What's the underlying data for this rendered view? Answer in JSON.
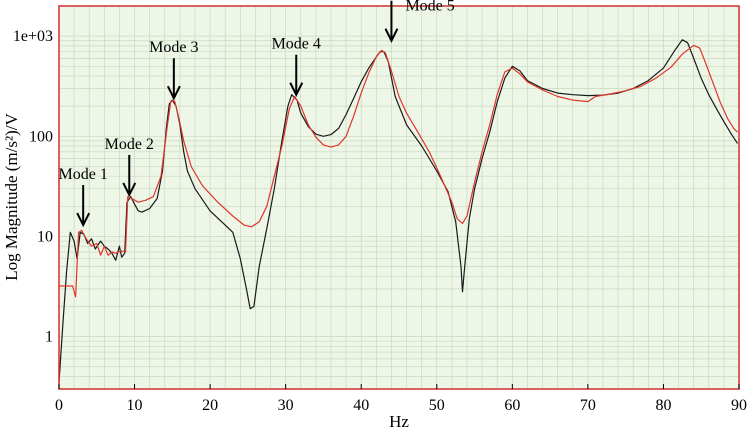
{
  "chart_data": {
    "type": "line",
    "title": "",
    "xlabel": "Hz",
    "ylabel": "Log Magnitude (m/s²)/V",
    "xlim": [
      0,
      90
    ],
    "ylim": [
      0.3,
      2000
    ],
    "yscale": "log",
    "grid": true,
    "colors": {
      "background": "#eef6e8",
      "grid": "#c9d9bf",
      "frame": "#d32f2f"
    },
    "x_ticks": [
      {
        "value": 0,
        "label": "0"
      },
      {
        "value": 10,
        "label": "10"
      },
      {
        "value": 20,
        "label": "20"
      },
      {
        "value": 30,
        "label": "30"
      },
      {
        "value": 40,
        "label": "40"
      },
      {
        "value": 50,
        "label": "50"
      },
      {
        "value": 60,
        "label": "60"
      },
      {
        "value": 70,
        "label": "70"
      },
      {
        "value": 80,
        "label": "80"
      },
      {
        "value": 90,
        "label": "90"
      }
    ],
    "y_ticks": [
      {
        "value": 1,
        "label": "1"
      },
      {
        "value": 10,
        "label": "10"
      },
      {
        "value": 100,
        "label": "100"
      },
      {
        "value": 1000,
        "label": "1e+03"
      }
    ],
    "series": [
      {
        "color": "#1a1a1a",
        "points": [
          [
            0,
            0.35
          ],
          [
            0.5,
            1.3
          ],
          [
            1,
            4.5
          ],
          [
            1.5,
            11
          ],
          [
            2,
            9
          ],
          [
            2.4,
            6
          ],
          [
            2.8,
            11
          ],
          [
            3.3,
            10.5
          ],
          [
            3.8,
            8.5
          ],
          [
            4.3,
            9.5
          ],
          [
            4.8,
            7.5
          ],
          [
            5.5,
            9
          ],
          [
            6,
            8
          ],
          [
            6.5,
            7.5
          ],
          [
            7,
            6.8
          ],
          [
            7.5,
            5.8
          ],
          [
            8,
            8
          ],
          [
            8.3,
            6.2
          ],
          [
            8.7,
            6.8
          ],
          [
            9,
            22
          ],
          [
            9.5,
            25
          ],
          [
            10,
            21
          ],
          [
            10.5,
            18
          ],
          [
            11,
            17.5
          ],
          [
            12,
            19
          ],
          [
            13,
            24
          ],
          [
            13.7,
            45
          ],
          [
            14.2,
            120
          ],
          [
            14.6,
            210
          ],
          [
            15,
            230
          ],
          [
            15.5,
            200
          ],
          [
            16,
            130
          ],
          [
            16.5,
            70
          ],
          [
            17,
            45
          ],
          [
            18,
            30
          ],
          [
            20,
            18
          ],
          [
            22,
            13
          ],
          [
            23,
            11
          ],
          [
            24,
            6
          ],
          [
            24.8,
            3
          ],
          [
            25.3,
            1.9
          ],
          [
            25.8,
            2
          ],
          [
            26.5,
            5
          ],
          [
            27.5,
            12
          ],
          [
            28.5,
            30
          ],
          [
            29.5,
            90
          ],
          [
            30.3,
            200
          ],
          [
            30.8,
            260
          ],
          [
            31.5,
            230
          ],
          [
            32,
            170
          ],
          [
            33,
            125
          ],
          [
            34,
            105
          ],
          [
            35,
            100
          ],
          [
            36,
            104
          ],
          [
            37,
            120
          ],
          [
            38,
            165
          ],
          [
            39,
            240
          ],
          [
            40,
            350
          ],
          [
            41,
            480
          ],
          [
            42,
            620
          ],
          [
            42.5,
            700
          ],
          [
            43,
            700
          ],
          [
            43.6,
            550
          ],
          [
            44.5,
            250
          ],
          [
            46,
            130
          ],
          [
            48,
            80
          ],
          [
            50,
            45
          ],
          [
            51.5,
            28
          ],
          [
            52.5,
            14
          ],
          [
            53.2,
            5
          ],
          [
            53.4,
            2.8
          ],
          [
            53.7,
            5
          ],
          [
            54.3,
            15
          ],
          [
            55,
            30
          ],
          [
            56,
            60
          ],
          [
            57,
            110
          ],
          [
            58,
            220
          ],
          [
            59,
            380
          ],
          [
            60,
            500
          ],
          [
            61,
            450
          ],
          [
            62,
            360
          ],
          [
            64,
            300
          ],
          [
            66,
            270
          ],
          [
            68,
            260
          ],
          [
            70,
            255
          ],
          [
            72,
            258
          ],
          [
            74,
            270
          ],
          [
            76,
            300
          ],
          [
            78,
            360
          ],
          [
            80,
            480
          ],
          [
            81.5,
            720
          ],
          [
            82.5,
            920
          ],
          [
            83.2,
            860
          ],
          [
            84,
            600
          ],
          [
            85,
            380
          ],
          [
            86,
            260
          ],
          [
            87,
            190
          ],
          [
            88,
            140
          ],
          [
            89,
            105
          ],
          [
            89.8,
            85
          ]
        ]
      },
      {
        "color": "#e0352a",
        "points": [
          [
            0,
            3.2
          ],
          [
            1.8,
            3.2
          ],
          [
            2.2,
            2.5
          ],
          [
            2.6,
            11
          ],
          [
            3,
            11.5
          ],
          [
            3.6,
            9.5
          ],
          [
            4.3,
            8
          ],
          [
            5,
            8.5
          ],
          [
            5.5,
            6.5
          ],
          [
            6,
            8
          ],
          [
            6.5,
            6.5
          ],
          [
            7,
            7
          ],
          [
            7.5,
            6.8
          ],
          [
            8.2,
            7.2
          ],
          [
            8.8,
            7
          ],
          [
            9.1,
            25
          ],
          [
            9.6,
            24
          ],
          [
            10.5,
            22
          ],
          [
            11.5,
            23
          ],
          [
            12.5,
            25
          ],
          [
            13.5,
            40
          ],
          [
            14.3,
            120
          ],
          [
            14.8,
            225
          ],
          [
            15.3,
            225
          ],
          [
            15.8,
            160
          ],
          [
            16.5,
            90
          ],
          [
            17.5,
            50
          ],
          [
            19,
            32
          ],
          [
            21,
            22
          ],
          [
            23,
            16
          ],
          [
            24.5,
            13
          ],
          [
            25.5,
            12.5
          ],
          [
            26.5,
            14
          ],
          [
            27.5,
            20
          ],
          [
            28.5,
            40
          ],
          [
            29.5,
            80
          ],
          [
            30.5,
            190
          ],
          [
            31.2,
            250
          ],
          [
            32,
            200
          ],
          [
            33,
            130
          ],
          [
            34,
            98
          ],
          [
            35,
            82
          ],
          [
            36,
            78
          ],
          [
            37,
            82
          ],
          [
            38,
            100
          ],
          [
            39,
            160
          ],
          [
            40,
            270
          ],
          [
            41,
            430
          ],
          [
            42,
            620
          ],
          [
            42.7,
            720
          ],
          [
            43.2,
            680
          ],
          [
            44,
            450
          ],
          [
            45,
            250
          ],
          [
            46,
            170
          ],
          [
            47.5,
            110
          ],
          [
            49,
            70
          ],
          [
            50.5,
            40
          ],
          [
            52,
            22
          ],
          [
            52.7,
            15
          ],
          [
            53.4,
            13.5
          ],
          [
            54,
            16
          ],
          [
            55,
            35
          ],
          [
            56,
            70
          ],
          [
            57,
            130
          ],
          [
            58,
            260
          ],
          [
            59,
            440
          ],
          [
            60,
            480
          ],
          [
            61,
            420
          ],
          [
            62,
            350
          ],
          [
            64,
            290
          ],
          [
            66,
            250
          ],
          [
            68,
            230
          ],
          [
            70,
            222
          ],
          [
            71,
            250
          ],
          [
            73,
            265
          ],
          [
            75,
            285
          ],
          [
            77,
            315
          ],
          [
            79,
            380
          ],
          [
            81,
            490
          ],
          [
            82.5,
            660
          ],
          [
            84,
            810
          ],
          [
            84.8,
            760
          ],
          [
            85.5,
            560
          ],
          [
            86.5,
            350
          ],
          [
            87.5,
            220
          ],
          [
            88.5,
            150
          ],
          [
            89.3,
            120
          ],
          [
            89.8,
            110
          ]
        ]
      }
    ],
    "annotations": [
      {
        "label": "Mode 1",
        "x": 3.2,
        "y": 13
      },
      {
        "label": "Mode 2",
        "x": 9.3,
        "y": 26
      },
      {
        "label": "Mode 3",
        "x": 15.2,
        "y": 240
      },
      {
        "label": "Mode 4",
        "x": 31.4,
        "y": 260
      },
      {
        "label": "Mode 5",
        "x": 44,
        "y": 900
      }
    ]
  }
}
